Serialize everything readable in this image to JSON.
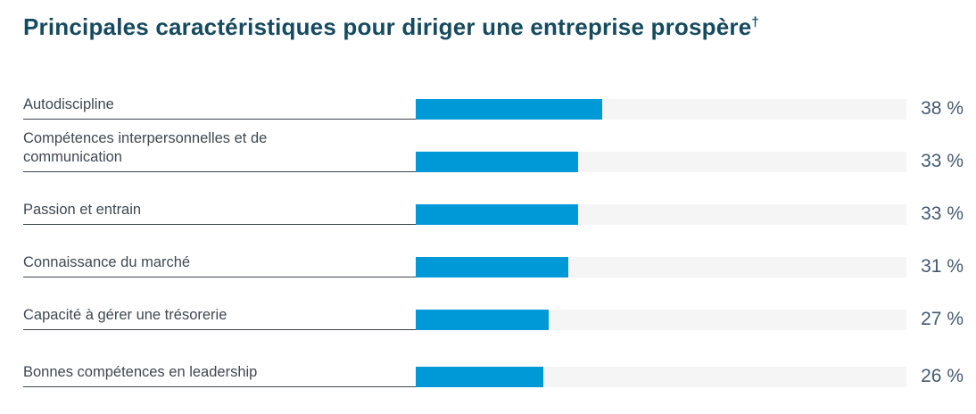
{
  "header": {
    "title": "Principales caractéristiques pour diriger une entreprise prospère",
    "footnote_marker": "†"
  },
  "chart_data": {
    "type": "bar",
    "orientation": "horizontal",
    "title": "Principales caractéristiques pour diriger une entreprise prospère†",
    "categories": [
      "Autodiscipline",
      "Compétences interpersonnelles et de communication",
      "Passion et entrain",
      "Connaissance du marché",
      "Capacité à gérer une trésorerie",
      "Bonnes compétences en leadership"
    ],
    "values": [
      38,
      33,
      33,
      31,
      27,
      26
    ],
    "values_display": [
      "38 %",
      "33 %",
      "33 %",
      "31 %",
      "27 %",
      "26 %"
    ],
    "unit": "%",
    "xlim": [
      0,
      100
    ],
    "grid": "off",
    "legend": "none",
    "colors": {
      "bar": "#0099d8",
      "track": "#f5f5f5",
      "title": "#164a5f",
      "label": "#3f4850",
      "value": "#465a70",
      "rule": "#3e444b"
    }
  }
}
